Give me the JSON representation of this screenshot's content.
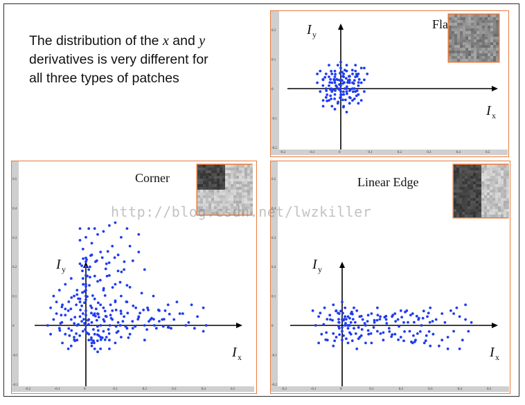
{
  "caption": {
    "line1_pre": "The distribution of the ",
    "var_x": "x",
    "line1_mid": " and ",
    "var_y": "y",
    "line2": "derivatives is very different for",
    "line3": "all three types of patches"
  },
  "watermark": "http://blog.csdn.net/lwzkiller",
  "chart_data": [
    {
      "type": "scatter",
      "title": "Flat",
      "xlabel": "I",
      "xlabel_sub": "x",
      "ylabel": "I",
      "ylabel_sub": "y",
      "xlim": [
        -0.2,
        0.55
      ],
      "ylim": [
        -0.2,
        0.25
      ],
      "xticks": [
        "-0.2",
        "-0.1",
        "0",
        "0.1",
        "0.2",
        "0.3",
        "0.4",
        "0.5"
      ],
      "yticks": [
        "-0.2",
        "-0.1",
        "0",
        "0.1",
        "0.2"
      ],
      "grid": false,
      "color": "#1f3cf0",
      "patch": "noise-gray",
      "points": [
        [
          0.0,
          0.01
        ],
        [
          0.01,
          0.02
        ],
        [
          -0.01,
          0.0
        ],
        [
          0.02,
          -0.01
        ],
        [
          -0.02,
          0.02
        ],
        [
          0.03,
          0.03
        ],
        [
          -0.03,
          -0.01
        ],
        [
          0.0,
          -0.03
        ],
        [
          0.04,
          0.0
        ],
        [
          -0.04,
          0.01
        ],
        [
          0.01,
          0.05
        ],
        [
          -0.01,
          -0.05
        ],
        [
          0.05,
          0.04
        ],
        [
          -0.05,
          -0.03
        ],
        [
          0.02,
          0.06
        ],
        [
          -0.02,
          0.06
        ],
        [
          0.06,
          -0.02
        ],
        [
          -0.06,
          0.03
        ],
        [
          0.03,
          -0.05
        ],
        [
          -0.03,
          0.05
        ],
        [
          0.0,
          0.07
        ],
        [
          0.07,
          0.02
        ],
        [
          -0.07,
          -0.01
        ],
        [
          0.04,
          -0.04
        ],
        [
          -0.04,
          -0.04
        ],
        [
          0.02,
          0.08
        ],
        [
          -0.02,
          -0.07
        ],
        [
          0.05,
          0.06
        ],
        [
          -0.05,
          0.05
        ],
        [
          0.06,
          0.05
        ],
        [
          -0.06,
          -0.04
        ],
        [
          0.01,
          -0.06
        ],
        [
          0.08,
          0.03
        ],
        [
          -0.08,
          0.02
        ],
        [
          0.03,
          0.02
        ],
        [
          -0.01,
          0.03
        ],
        [
          0.0,
          -0.01
        ],
        [
          0.02,
          0.0
        ],
        [
          -0.03,
          0.02
        ],
        [
          0.01,
          -0.02
        ],
        [
          0.04,
          0.05
        ],
        [
          -0.04,
          0.04
        ],
        [
          0.05,
          -0.01
        ],
        [
          -0.05,
          0.0
        ],
        [
          0.06,
          0.01
        ],
        [
          -0.02,
          -0.02
        ],
        [
          0.03,
          -0.03
        ],
        [
          0.07,
          0.07
        ],
        [
          -0.07,
          0.06
        ],
        [
          0.0,
          0.09
        ],
        [
          0.05,
          0.08
        ],
        [
          -0.04,
          0.08
        ],
        [
          0.08,
          -0.01
        ],
        [
          -0.01,
          0.08
        ],
        [
          0.02,
          -0.08
        ],
        [
          -0.03,
          -0.06
        ],
        [
          0.07,
          -0.04
        ],
        [
          -0.06,
          -0.06
        ],
        [
          0.09,
          0.05
        ],
        [
          0.01,
          0.04
        ],
        [
          0.04,
          0.02
        ],
        [
          -0.02,
          0.04
        ],
        [
          0.06,
          -0.05
        ],
        [
          -0.08,
          0.05
        ],
        [
          0.08,
          0.07
        ],
        [
          0.0,
          0.03
        ]
      ]
    },
    {
      "type": "scatter",
      "title": "Corner",
      "xlabel": "I",
      "xlabel_sub": "x",
      "ylabel": "I",
      "ylabel_sub": "y",
      "xlim": [
        -0.2,
        0.55
      ],
      "ylim": [
        -0.2,
        0.55
      ],
      "xticks": [
        "-0.2",
        "-0.1",
        "0",
        "0.1",
        "0.2",
        "0.3",
        "0.4",
        "0.5"
      ],
      "yticks": [
        "-0.2",
        "-0.1",
        "0",
        "0.1",
        "0.2",
        "0.3",
        "0.4",
        "0.5"
      ],
      "grid": false,
      "color": "#1f3cf0",
      "patch": "corner",
      "points": [
        [
          0.0,
          0.0
        ],
        [
          0.01,
          0.02
        ],
        [
          -0.01,
          -0.02
        ],
        [
          0.02,
          0.01
        ],
        [
          -0.02,
          0.03
        ],
        [
          0.03,
          -0.03
        ],
        [
          -0.03,
          0.0
        ],
        [
          0.0,
          0.05
        ],
        [
          0.05,
          0.0
        ],
        [
          -0.05,
          0.02
        ],
        [
          0.01,
          -0.05
        ],
        [
          0.04,
          0.04
        ],
        [
          -0.04,
          -0.04
        ],
        [
          0.06,
          -0.02
        ],
        [
          -0.06,
          0.05
        ],
        [
          0.07,
          0.03
        ],
        [
          -0.07,
          -0.03
        ],
        [
          0.02,
          -0.07
        ],
        [
          -0.02,
          0.08
        ],
        [
          0.08,
          -0.05
        ],
        [
          -0.08,
          0.07
        ],
        [
          0.03,
          0.09
        ],
        [
          0.09,
          0.02
        ],
        [
          -0.09,
          -0.01
        ],
        [
          0.1,
          -0.06
        ],
        [
          -0.1,
          0.04
        ],
        [
          0.05,
          -0.08
        ],
        [
          -0.05,
          -0.07
        ],
        [
          0.06,
          0.06
        ],
        [
          0.11,
          0.01
        ],
        [
          0.0,
          0.1
        ],
        [
          0.0,
          0.12
        ],
        [
          0.0,
          0.14
        ],
        [
          0.0,
          0.17
        ],
        [
          0.0,
          0.2
        ],
        [
          0.0,
          0.23
        ],
        [
          -0.01,
          0.26
        ],
        [
          -0.02,
          0.29
        ],
        [
          -0.02,
          0.33
        ],
        [
          0.01,
          0.33
        ],
        [
          0.0,
          0.3
        ],
        [
          0.01,
          0.19
        ],
        [
          -0.01,
          0.16
        ],
        [
          0.02,
          0.24
        ],
        [
          -0.02,
          0.21
        ],
        [
          0.03,
          0.33
        ],
        [
          0.02,
          0.28
        ],
        [
          0.04,
          0.31
        ],
        [
          0.06,
          0.32
        ],
        [
          0.08,
          0.34
        ],
        [
          0.1,
          0.35
        ],
        [
          0.12,
          0.3
        ],
        [
          0.14,
          0.33
        ],
        [
          0.15,
          0.27
        ],
        [
          0.05,
          0.25
        ],
        [
          0.07,
          0.21
        ],
        [
          0.09,
          0.27
        ],
        [
          0.11,
          0.24
        ],
        [
          0.13,
          0.19
        ],
        [
          0.16,
          0.22
        ],
        [
          0.18,
          0.25
        ],
        [
          0.2,
          0.19
        ],
        [
          0.18,
          0.31
        ],
        [
          0.04,
          0.15
        ],
        [
          0.06,
          0.12
        ],
        [
          0.08,
          0.17
        ],
        [
          0.1,
          0.14
        ],
        [
          0.12,
          0.1
        ],
        [
          0.14,
          0.08
        ],
        [
          0.15,
          0.13
        ],
        [
          0.17,
          0.06
        ],
        [
          0.19,
          0.11
        ],
        [
          0.21,
          0.06
        ],
        [
          0.23,
          0.1
        ],
        [
          0.25,
          0.05
        ],
        [
          0.26,
          0.02
        ],
        [
          0.28,
          0.07
        ],
        [
          0.3,
          0.02
        ],
        [
          0.31,
          0.08
        ],
        [
          0.33,
          0.04
        ],
        [
          0.35,
          0.01
        ],
        [
          0.36,
          0.07
        ],
        [
          0.38,
          0.03
        ],
        [
          0.4,
          0.06
        ],
        [
          0.41,
          0.0
        ],
        [
          0.4,
          -0.02
        ],
        [
          0.37,
          -0.01
        ],
        [
          0.34,
          0.0
        ],
        [
          0.32,
          0.04
        ],
        [
          0.29,
          -0.01
        ],
        [
          0.27,
          0.05
        ],
        [
          0.24,
          -0.01
        ],
        [
          0.22,
          0.02
        ],
        [
          0.2,
          0.0
        ],
        [
          0.18,
          0.03
        ],
        [
          0.16,
          -0.01
        ],
        [
          0.13,
          0.03
        ],
        [
          0.11,
          -0.02
        ],
        [
          0.09,
          0.05
        ],
        [
          0.07,
          -0.04
        ],
        [
          0.05,
          0.07
        ],
        [
          0.03,
          -0.08
        ],
        [
          0.12,
          -0.04
        ],
        [
          0.15,
          -0.03
        ],
        [
          0.2,
          -0.05
        ],
        [
          0.08,
          -0.08
        ],
        [
          0.04,
          -0.09
        ],
        [
          0.02,
          -0.06
        ],
        [
          -0.11,
          0.02
        ],
        [
          -0.12,
          0.06
        ],
        [
          -0.13,
          0.0
        ],
        [
          -0.12,
          -0.03
        ],
        [
          -0.1,
          0.08
        ],
        [
          -0.09,
          0.12
        ],
        [
          -0.11,
          0.1
        ],
        [
          -0.08,
          -0.06
        ],
        [
          -0.06,
          -0.08
        ],
        [
          -0.04,
          0.1
        ],
        [
          -0.07,
          0.14
        ],
        [
          -0.05,
          0.16
        ],
        [
          -0.03,
          0.12
        ],
        [
          -0.02,
          0.09
        ],
        [
          0.02,
          0.06
        ],
        [
          0.01,
          -0.03
        ],
        [
          -0.01,
          0.04
        ],
        [
          0.03,
          0.04
        ],
        [
          0.06,
          0.02
        ],
        [
          -0.03,
          -0.05
        ],
        [
          0.05,
          -0.04
        ],
        [
          0.1,
          0.08
        ],
        [
          0.12,
          0.04
        ],
        [
          0.14,
          -0.01
        ]
      ]
    },
    {
      "type": "scatter",
      "title": "Linear Edge",
      "xlabel": "I",
      "xlabel_sub": "x",
      "ylabel": "I",
      "ylabel_sub": "y",
      "xlim": [
        -0.2,
        0.55
      ],
      "ylim": [
        -0.2,
        0.55
      ],
      "xticks": [
        "-0.2",
        "-0.1",
        "0",
        "0.1",
        "0.2",
        "0.3",
        "0.4",
        "0.5"
      ],
      "yticks": [
        "-0.2",
        "-0.1",
        "0",
        "0.1",
        "0.2",
        "0.3",
        "0.4",
        "0.5"
      ],
      "grid": false,
      "color": "#1f3cf0",
      "patch": "edge",
      "points": [
        [
          -0.1,
          0.05
        ],
        [
          -0.09,
          0.0
        ],
        [
          -0.08,
          0.03
        ],
        [
          -0.07,
          -0.03
        ],
        [
          -0.06,
          0.06
        ],
        [
          -0.05,
          -0.05
        ],
        [
          -0.04,
          0.02
        ],
        [
          -0.03,
          0.07
        ],
        [
          -0.02,
          -0.04
        ],
        [
          -0.01,
          0.04
        ],
        [
          0.0,
          -0.02
        ],
        [
          0.0,
          0.02
        ],
        [
          0.01,
          0.06
        ],
        [
          0.02,
          -0.06
        ],
        [
          0.03,
          0.01
        ],
        [
          0.04,
          -0.01
        ],
        [
          0.05,
          0.05
        ],
        [
          0.06,
          -0.04
        ],
        [
          0.07,
          0.02
        ],
        [
          0.08,
          0.0
        ],
        [
          0.09,
          -0.03
        ],
        [
          0.1,
          0.04
        ],
        [
          0.11,
          0.01
        ],
        [
          0.12,
          -0.02
        ],
        [
          0.13,
          0.03
        ],
        [
          0.14,
          -0.05
        ],
        [
          0.15,
          0.02
        ],
        [
          0.16,
          -0.01
        ],
        [
          0.17,
          0.03
        ],
        [
          0.18,
          -0.03
        ],
        [
          0.19,
          0.02
        ],
        [
          0.2,
          -0.04
        ],
        [
          0.21,
          0.01
        ],
        [
          0.22,
          0.05
        ],
        [
          0.23,
          -0.02
        ],
        [
          0.24,
          0.04
        ],
        [
          0.25,
          -0.05
        ],
        [
          0.26,
          0.02
        ],
        [
          0.27,
          0.0
        ],
        [
          0.28,
          -0.06
        ],
        [
          0.29,
          0.03
        ],
        [
          0.3,
          0.06
        ],
        [
          0.31,
          -0.03
        ],
        [
          0.32,
          0.02
        ],
        [
          0.33,
          -0.07
        ],
        [
          0.34,
          0.04
        ],
        [
          0.35,
          0.01
        ],
        [
          0.36,
          -0.04
        ],
        [
          0.37,
          0.05
        ],
        [
          0.38,
          -0.02
        ],
        [
          0.39,
          0.06
        ],
        [
          0.4,
          0.03
        ],
        [
          0.41,
          -0.05
        ],
        [
          0.42,
          0.02
        ],
        [
          0.43,
          -0.02
        ],
        [
          0.44,
          0.01
        ],
        [
          0.4,
          -0.08
        ],
        [
          0.36,
          -0.08
        ],
        [
          0.3,
          -0.07
        ],
        [
          0.2,
          0.05
        ],
        [
          0.1,
          -0.06
        ],
        [
          0.05,
          -0.08
        ],
        [
          0.0,
          -0.05
        ],
        [
          -0.03,
          -0.07
        ],
        [
          -0.08,
          -0.06
        ],
        [
          0.01,
          0.0
        ],
        [
          -0.01,
          -0.01
        ],
        [
          0.02,
          0.03
        ],
        [
          0.03,
          -0.03
        ],
        [
          0.0,
          0.08
        ],
        [
          -0.02,
          0.05
        ],
        [
          0.04,
          0.06
        ],
        [
          0.06,
          0.03
        ],
        [
          0.08,
          -0.06
        ],
        [
          0.12,
          0.06
        ],
        [
          0.18,
          0.04
        ],
        [
          0.24,
          -0.06
        ],
        [
          0.34,
          -0.05
        ],
        [
          0.38,
          0.04
        ],
        [
          0.42,
          0.07
        ],
        [
          0.02,
          -0.01
        ],
        [
          -0.01,
          0.01
        ],
        [
          0.01,
          0.03
        ],
        [
          0.03,
          0.04
        ]
      ]
    }
  ]
}
